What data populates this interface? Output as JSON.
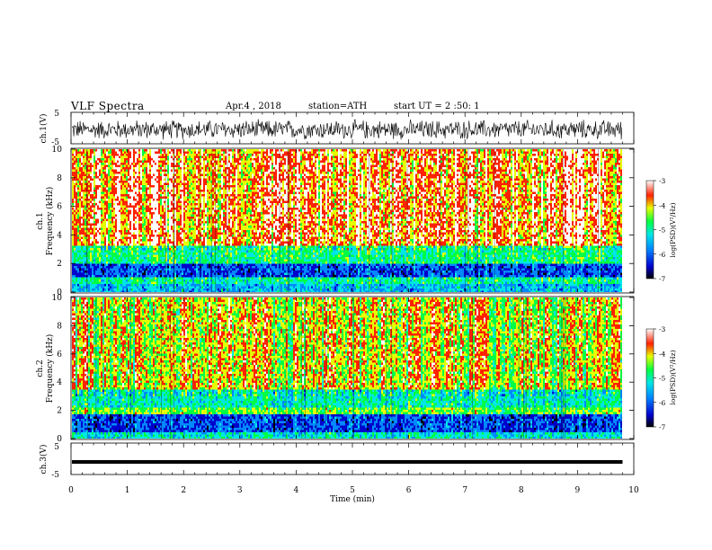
{
  "header": {
    "title": "VLF  Spectra",
    "date": "Apr.4  , 2018",
    "station": "station=ATH",
    "start": "start  UT  =   2  :50: 1"
  },
  "colors": {
    "colormap": [
      "#000000",
      "#0000cc",
      "#0088ff",
      "#00e6e6",
      "#00ff44",
      "#e6ff00",
      "#ff2200",
      "#ffffff"
    ]
  },
  "chart_data": [
    {
      "id": "ch1-waveform",
      "type": "line",
      "ylabel": "ch.1(V)",
      "ylim": [
        -5,
        5
      ],
      "yticks": [
        "5",
        "-5"
      ],
      "xlim": [
        0,
        10
      ],
      "description_level": "noisy oscillation around -0.5 V, amplitude ~2.5 V"
    },
    {
      "id": "ch1-spectrogram",
      "type": "heatmap",
      "ylabel_channel": "ch.1",
      "ylabel": "Frequency  (kHz)",
      "ylim": [
        0,
        10
      ],
      "yticks": [
        "0",
        "2",
        "4",
        "6",
        "8",
        "10"
      ],
      "xlim": [
        0,
        9.8
      ],
      "colorbar": {
        "label": "log(PSD)(V²/Hz)",
        "range": [
          -7,
          -3
        ],
        "ticks": [
          "-3",
          "-4",
          "-5",
          "-6",
          "-7"
        ]
      },
      "bands": [
        {
          "from_khz": 0.0,
          "to_khz": 0.7,
          "level": -5.5
        },
        {
          "from_khz": 0.7,
          "to_khz": 1.1,
          "level": -5.0
        },
        {
          "from_khz": 1.1,
          "to_khz": 2.0,
          "level": -6.0
        },
        {
          "from_khz": 2.0,
          "to_khz": 3.3,
          "level": -4.9
        },
        {
          "from_khz": 3.3,
          "to_khz": 10.0,
          "level": -3.8
        }
      ]
    },
    {
      "id": "ch2-spectrogram",
      "type": "heatmap",
      "ylabel_channel": "ch.2",
      "ylabel": "Frequency  (kHz)",
      "ylim": [
        0,
        10
      ],
      "yticks": [
        "0",
        "2",
        "4",
        "6",
        "8",
        "10"
      ],
      "xlim": [
        0,
        9.8
      ],
      "colorbar": {
        "label": "log(PSD)(V²/Hz)",
        "range": [
          -7,
          -3
        ],
        "ticks": [
          "-3",
          "-4",
          "-5",
          "-6",
          "-7"
        ]
      },
      "bands": [
        {
          "from_khz": 0.0,
          "to_khz": 0.6,
          "level": -5.2
        },
        {
          "from_khz": 0.6,
          "to_khz": 1.8,
          "level": -6.0
        },
        {
          "from_khz": 1.8,
          "to_khz": 2.2,
          "level": -4.6
        },
        {
          "from_khz": 2.2,
          "to_khz": 3.6,
          "level": -5.1
        },
        {
          "from_khz": 3.6,
          "to_khz": 10.0,
          "level": -4.2
        }
      ]
    },
    {
      "id": "ch3-waveform",
      "type": "line",
      "ylabel": "ch.3(V)",
      "ylim": [
        -5,
        5
      ],
      "yticks": [
        "5",
        "-5"
      ],
      "xlim": [
        0,
        10
      ],
      "xlabel": "Time  (min)",
      "xticks": [
        "0",
        "1",
        "2",
        "3",
        "4",
        "5",
        "6",
        "7",
        "8",
        "9",
        "10"
      ],
      "description_level": "flat line near -1 V"
    }
  ]
}
